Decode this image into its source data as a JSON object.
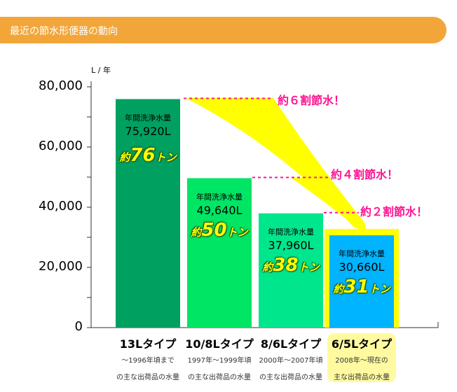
{
  "header": {
    "title": "最近の節水形便器の動向"
  },
  "chart_data": {
    "type": "bar",
    "unit_label": "L / 年",
    "ylim": [
      0,
      80000
    ],
    "yticks": [
      "0",
      "20,000",
      "40,000",
      "60,000",
      "80,000"
    ],
    "categories": [
      "13Lタイプ",
      "10/8Lタイプ",
      "8/6Lタイプ",
      "6/5Lタイプ"
    ],
    "descriptions": [
      [
        "～1996年頃まで",
        "の主な出荷品の水量"
      ],
      [
        "1997年～1999年頃",
        "の主な出荷品の水量"
      ],
      [
        "2000年～2007年頃",
        "の主な出荷品の水量"
      ],
      [
        "2008年～現在の",
        "主な出荷品の水量"
      ]
    ],
    "values": [
      75920,
      49640,
      37960,
      30660
    ],
    "value_labels": [
      "75,920L",
      "49,640L",
      "37,960L",
      "30,660L"
    ],
    "bar_title": "年間洗浄水量",
    "ton_prefix": "約",
    "ton_suffix": "トン",
    "tons": [
      "76",
      "50",
      "38",
      "31"
    ],
    "colors": [
      "#00a060",
      "#00e564",
      "#00e68c",
      "#00b4ff"
    ],
    "highlight_color": "#ffff00",
    "annotations": [
      "約６割節水！",
      "約４割節水！",
      "約２割節水！"
    ]
  }
}
